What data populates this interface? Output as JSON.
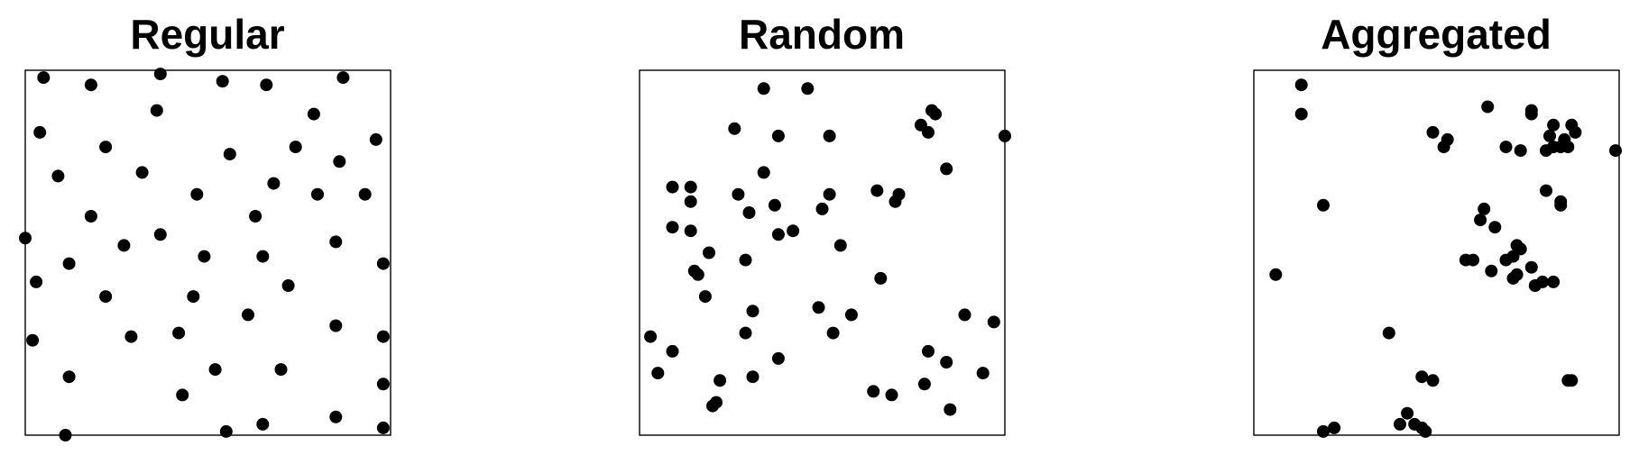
{
  "chart_data": [
    {
      "type": "scatter",
      "title": "Regular",
      "xlim": [
        0,
        1
      ],
      "ylim": [
        0,
        1
      ],
      "grid": false,
      "points": [
        [
          0.05,
          0.98
        ],
        [
          0.18,
          0.96
        ],
        [
          0.37,
          0.99
        ],
        [
          0.54,
          0.97
        ],
        [
          0.66,
          0.96
        ],
        [
          0.87,
          0.98
        ],
        [
          0.04,
          0.83
        ],
        [
          0.36,
          0.89
        ],
        [
          0.79,
          0.88
        ],
        [
          0.96,
          0.81
        ],
        [
          0.22,
          0.79
        ],
        [
          0.56,
          0.77
        ],
        [
          0.74,
          0.79
        ],
        [
          0.86,
          0.75
        ],
        [
          0.09,
          0.71
        ],
        [
          0.32,
          0.72
        ],
        [
          0.68,
          0.69
        ],
        [
          0.47,
          0.66
        ],
        [
          0.8,
          0.66
        ],
        [
          0.93,
          0.66
        ],
        [
          0.18,
          0.6
        ],
        [
          0.63,
          0.6
        ],
        [
          0.37,
          0.55
        ],
        [
          0.0,
          0.54
        ],
        [
          0.27,
          0.52
        ],
        [
          0.85,
          0.53
        ],
        [
          0.12,
          0.47
        ],
        [
          0.49,
          0.49
        ],
        [
          0.65,
          0.49
        ],
        [
          0.98,
          0.47
        ],
        [
          0.03,
          0.42
        ],
        [
          0.72,
          0.41
        ],
        [
          0.46,
          0.38
        ],
        [
          0.22,
          0.38
        ],
        [
          0.61,
          0.33
        ],
        [
          0.85,
          0.3
        ],
        [
          0.42,
          0.28
        ],
        [
          0.29,
          0.27
        ],
        [
          0.02,
          0.26
        ],
        [
          0.98,
          0.27
        ],
        [
          0.52,
          0.18
        ],
        [
          0.7,
          0.18
        ],
        [
          0.12,
          0.16
        ],
        [
          0.43,
          0.11
        ],
        [
          0.98,
          0.14
        ],
        [
          0.85,
          0.05
        ],
        [
          0.65,
          0.03
        ],
        [
          0.55,
          0.01
        ],
        [
          0.11,
          0.0
        ],
        [
          0.98,
          0.02
        ]
      ]
    },
    {
      "type": "scatter",
      "title": "Random",
      "xlim": [
        0,
        1
      ],
      "ylim": [
        0,
        1
      ],
      "grid": false,
      "points": [
        [
          0.34,
          0.95
        ],
        [
          0.46,
          0.95
        ],
        [
          0.8,
          0.89
        ],
        [
          0.81,
          0.88
        ],
        [
          0.77,
          0.85
        ],
        [
          0.79,
          0.83
        ],
        [
          0.26,
          0.84
        ],
        [
          0.38,
          0.82
        ],
        [
          0.52,
          0.82
        ],
        [
          1.0,
          0.82
        ],
        [
          0.34,
          0.72
        ],
        [
          0.84,
          0.73
        ],
        [
          0.09,
          0.68
        ],
        [
          0.14,
          0.68
        ],
        [
          0.14,
          0.64
        ],
        [
          0.27,
          0.66
        ],
        [
          0.52,
          0.66
        ],
        [
          0.65,
          0.67
        ],
        [
          0.71,
          0.66
        ],
        [
          0.7,
          0.64
        ],
        [
          0.37,
          0.63
        ],
        [
          0.5,
          0.62
        ],
        [
          0.3,
          0.61
        ],
        [
          0.09,
          0.57
        ],
        [
          0.14,
          0.56
        ],
        [
          0.38,
          0.55
        ],
        [
          0.42,
          0.56
        ],
        [
          0.55,
          0.52
        ],
        [
          0.19,
          0.5
        ],
        [
          0.29,
          0.48
        ],
        [
          0.15,
          0.45
        ],
        [
          0.16,
          0.44
        ],
        [
          0.66,
          0.43
        ],
        [
          0.18,
          0.38
        ],
        [
          0.49,
          0.35
        ],
        [
          0.31,
          0.34
        ],
        [
          0.58,
          0.33
        ],
        [
          0.89,
          0.33
        ],
        [
          0.97,
          0.31
        ],
        [
          0.29,
          0.28
        ],
        [
          0.53,
          0.28
        ],
        [
          0.03,
          0.27
        ],
        [
          0.09,
          0.23
        ],
        [
          0.38,
          0.21
        ],
        [
          0.79,
          0.23
        ],
        [
          0.84,
          0.2
        ],
        [
          0.05,
          0.17
        ],
        [
          0.31,
          0.16
        ],
        [
          0.94,
          0.17
        ],
        [
          0.22,
          0.15
        ],
        [
          0.78,
          0.14
        ],
        [
          0.64,
          0.12
        ],
        [
          0.69,
          0.11
        ],
        [
          0.21,
          0.09
        ],
        [
          0.2,
          0.08
        ],
        [
          0.85,
          0.07
        ]
      ]
    },
    {
      "type": "scatter",
      "title": "Aggregated",
      "xlim": [
        0,
        1
      ],
      "ylim": [
        0,
        1
      ],
      "grid": false,
      "points": [
        [
          0.13,
          0.96
        ],
        [
          0.13,
          0.88
        ],
        [
          0.64,
          0.9
        ],
        [
          0.76,
          0.89
        ],
        [
          0.76,
          0.88
        ],
        [
          0.82,
          0.85
        ],
        [
          0.87,
          0.85
        ],
        [
          0.49,
          0.83
        ],
        [
          0.53,
          0.81
        ],
        [
          0.52,
          0.79
        ],
        [
          0.69,
          0.79
        ],
        [
          0.73,
          0.78
        ],
        [
          0.81,
          0.82
        ],
        [
          0.85,
          0.81
        ],
        [
          0.88,
          0.83
        ],
        [
          0.82,
          0.79
        ],
        [
          0.84,
          0.79
        ],
        [
          0.8,
          0.78
        ],
        [
          0.86,
          0.79
        ],
        [
          0.99,
          0.78
        ],
        [
          0.8,
          0.67
        ],
        [
          0.84,
          0.64
        ],
        [
          0.84,
          0.63
        ],
        [
          0.19,
          0.63
        ],
        [
          0.63,
          0.62
        ],
        [
          0.62,
          0.59
        ],
        [
          0.66,
          0.57
        ],
        [
          0.72,
          0.52
        ],
        [
          0.73,
          0.51
        ],
        [
          0.71,
          0.49
        ],
        [
          0.58,
          0.48
        ],
        [
          0.6,
          0.48
        ],
        [
          0.69,
          0.48
        ],
        [
          0.65,
          0.45
        ],
        [
          0.76,
          0.46
        ],
        [
          0.72,
          0.44
        ],
        [
          0.71,
          0.43
        ],
        [
          0.79,
          0.42
        ],
        [
          0.82,
          0.42
        ],
        [
          0.77,
          0.41
        ],
        [
          0.06,
          0.44
        ],
        [
          0.37,
          0.28
        ],
        [
          0.46,
          0.16
        ],
        [
          0.49,
          0.15
        ],
        [
          0.87,
          0.15
        ],
        [
          0.86,
          0.15
        ],
        [
          0.42,
          0.06
        ],
        [
          0.44,
          0.03
        ],
        [
          0.4,
          0.03
        ],
        [
          0.46,
          0.02
        ],
        [
          0.47,
          0.01
        ],
        [
          0.22,
          0.02
        ],
        [
          0.19,
          0.01
        ]
      ]
    }
  ]
}
